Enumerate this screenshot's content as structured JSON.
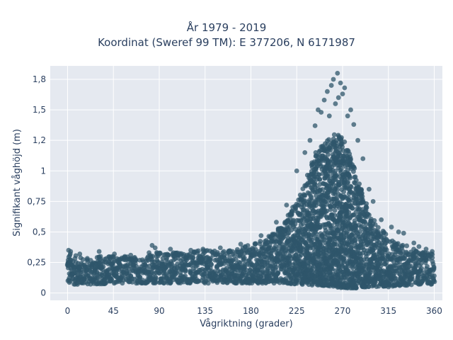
{
  "chart_data": {
    "type": "scatter",
    "title_line_1": "År 1979 - 2019",
    "title_line_2": "Koordinat (Sweref 99 TM): E 377206, N 6171987",
    "xlabel": "Vågriktning (grader)",
    "ylabel": "Signifikant våghöjd (m)",
    "xlim": [
      -17,
      368
    ],
    "ylim": [
      -0.06,
      1.86
    ],
    "x_ticks": [
      0,
      45,
      90,
      135,
      180,
      225,
      270,
      315,
      360
    ],
    "x_tick_labels": [
      "0",
      "45",
      "90",
      "135",
      "180",
      "225",
      "270",
      "315",
      "360"
    ],
    "y_ticks": [
      0,
      0.25,
      0.5,
      0.75,
      1,
      1.25,
      1.5,
      1.75
    ],
    "y_tick_labels": [
      "0",
      "0,25",
      "0,5",
      "0,75",
      "1",
      "1,2",
      "1,5",
      "1,8"
    ],
    "grid": true,
    "marker_color": "#2f566b",
    "plot_bg": "#e5e9f0",
    "envelope": {
      "direction": [
        0,
        10,
        20,
        30,
        45,
        60,
        75,
        90,
        105,
        120,
        135,
        150,
        165,
        180,
        195,
        210,
        225,
        235,
        245,
        255,
        262,
        268,
        275,
        285,
        295,
        305,
        315,
        325,
        335,
        345,
        355,
        360
      ],
      "upper": [
        0.34,
        0.3,
        0.29,
        0.3,
        0.31,
        0.3,
        0.3,
        0.34,
        0.34,
        0.34,
        0.35,
        0.35,
        0.36,
        0.4,
        0.45,
        0.55,
        0.75,
        0.95,
        1.18,
        1.25,
        1.3,
        1.32,
        1.2,
        0.95,
        0.7,
        0.55,
        0.47,
        0.42,
        0.38,
        0.35,
        0.33,
        0.32
      ],
      "lower": [
        0.07,
        0.07,
        0.07,
        0.07,
        0.08,
        0.08,
        0.08,
        0.08,
        0.08,
        0.08,
        0.08,
        0.08,
        0.08,
        0.08,
        0.08,
        0.08,
        0.07,
        0.07,
        0.06,
        0.06,
        0.05,
        0.04,
        0.04,
        0.04,
        0.05,
        0.05,
        0.05,
        0.06,
        0.06,
        0.07,
        0.07,
        0.07
      ]
    },
    "outlier_points": [
      {
        "x": 1,
        "y": 0.35
      },
      {
        "x": 3,
        "y": 0.34
      },
      {
        "x": 12,
        "y": 0.32
      },
      {
        "x": 31,
        "y": 0.34
      },
      {
        "x": 46,
        "y": 0.32
      },
      {
        "x": 62,
        "y": 0.31
      },
      {
        "x": 80,
        "y": 0.33
      },
      {
        "x": 83,
        "y": 0.39
      },
      {
        "x": 86,
        "y": 0.37
      },
      {
        "x": 101,
        "y": 0.36
      },
      {
        "x": 121,
        "y": 0.35
      },
      {
        "x": 133,
        "y": 0.36
      },
      {
        "x": 150,
        "y": 0.37
      },
      {
        "x": 170,
        "y": 0.4
      },
      {
        "x": 190,
        "y": 0.47
      },
      {
        "x": 205,
        "y": 0.58
      },
      {
        "x": 215,
        "y": 0.72
      },
      {
        "x": 225,
        "y": 1.0
      },
      {
        "x": 233,
        "y": 1.15
      },
      {
        "x": 238,
        "y": 1.25
      },
      {
        "x": 243,
        "y": 1.37
      },
      {
        "x": 246,
        "y": 1.5
      },
      {
        "x": 249,
        "y": 1.48
      },
      {
        "x": 252,
        "y": 1.58
      },
      {
        "x": 255,
        "y": 1.65
      },
      {
        "x": 257,
        "y": 1.45
      },
      {
        "x": 259,
        "y": 1.7
      },
      {
        "x": 261,
        "y": 1.75
      },
      {
        "x": 263,
        "y": 1.55
      },
      {
        "x": 265,
        "y": 1.8
      },
      {
        "x": 266,
        "y": 1.6
      },
      {
        "x": 268,
        "y": 1.72
      },
      {
        "x": 270,
        "y": 1.63
      },
      {
        "x": 272,
        "y": 1.68
      },
      {
        "x": 275,
        "y": 1.45
      },
      {
        "x": 278,
        "y": 1.5
      },
      {
        "x": 281,
        "y": 1.38
      },
      {
        "x": 285,
        "y": 1.25
      },
      {
        "x": 290,
        "y": 1.1
      },
      {
        "x": 296,
        "y": 0.85
      },
      {
        "x": 300,
        "y": 0.75
      },
      {
        "x": 308,
        "y": 0.6
      },
      {
        "x": 318,
        "y": 0.54
      },
      {
        "x": 325,
        "y": 0.5
      },
      {
        "x": 330,
        "y": 0.49
      },
      {
        "x": 340,
        "y": 0.41
      },
      {
        "x": 345,
        "y": 0.38
      },
      {
        "x": 352,
        "y": 0.36
      },
      {
        "x": 358,
        "y": 0.34
      }
    ]
  }
}
